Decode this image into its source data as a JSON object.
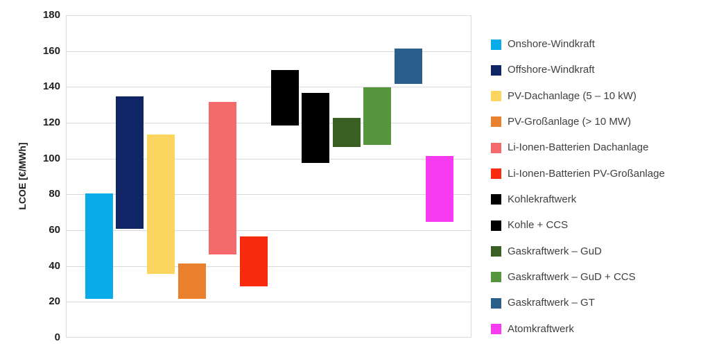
{
  "chart_data": {
    "type": "bar",
    "subtype": "floating-range-columns",
    "title": "",
    "xlabel": "",
    "ylabel": "LCOE [€/MWh]",
    "unit": "€/MWh",
    "ylim": [
      0,
      180
    ],
    "ytick_step": 20,
    "grid": true,
    "legend_position": "right",
    "background_color": "#ffffff",
    "gridline_color": "#d9d9d9",
    "tick_label_color": "#1f1f1f",
    "legend_text_color": "#3f3f3f",
    "series": [
      {
        "name": "Onshore-Windkraft",
        "min": 22,
        "max": 81,
        "color": "#0aabe9"
      },
      {
        "name": "Offshore-Windkraft",
        "min": 61,
        "max": 135,
        "color": "#0f2566"
      },
      {
        "name": "PV-Dachanlage (5 – 10 kW)",
        "min": 36,
        "max": 114,
        "color": "#fad65f"
      },
      {
        "name": "PV-Großanlage (> 10 MW)",
        "min": 22,
        "max": 42,
        "color": "#e8802e"
      },
      {
        "name": "Li-Ionen-Batterien Dachanlage",
        "min": 47,
        "max": 132,
        "color": "#f4696b"
      },
      {
        "name": "Li-Ionen-Batterien PV-Großanlage",
        "min": 29,
        "max": 57,
        "color": "#f92b0e"
      },
      {
        "name": "Kohlekraftwerk",
        "min": 119,
        "max": 150,
        "color": "#000000"
      },
      {
        "name": "Kohle + CCS",
        "min": 98,
        "max": 137,
        "color": "#000000"
      },
      {
        "name": "Gaskraftwerk – GuD",
        "min": 107,
        "max": 123,
        "color": "#3a5f23"
      },
      {
        "name": "Gaskraftwerk – GuD + CCS",
        "min": 108,
        "max": 140,
        "color": "#55953e"
      },
      {
        "name": "Gaskraftwerk – GT",
        "min": 142,
        "max": 162,
        "color": "#2a5f8c"
      },
      {
        "name": "Atomkraftwerk",
        "min": 65,
        "max": 102,
        "color": "#f73bf0"
      }
    ]
  }
}
